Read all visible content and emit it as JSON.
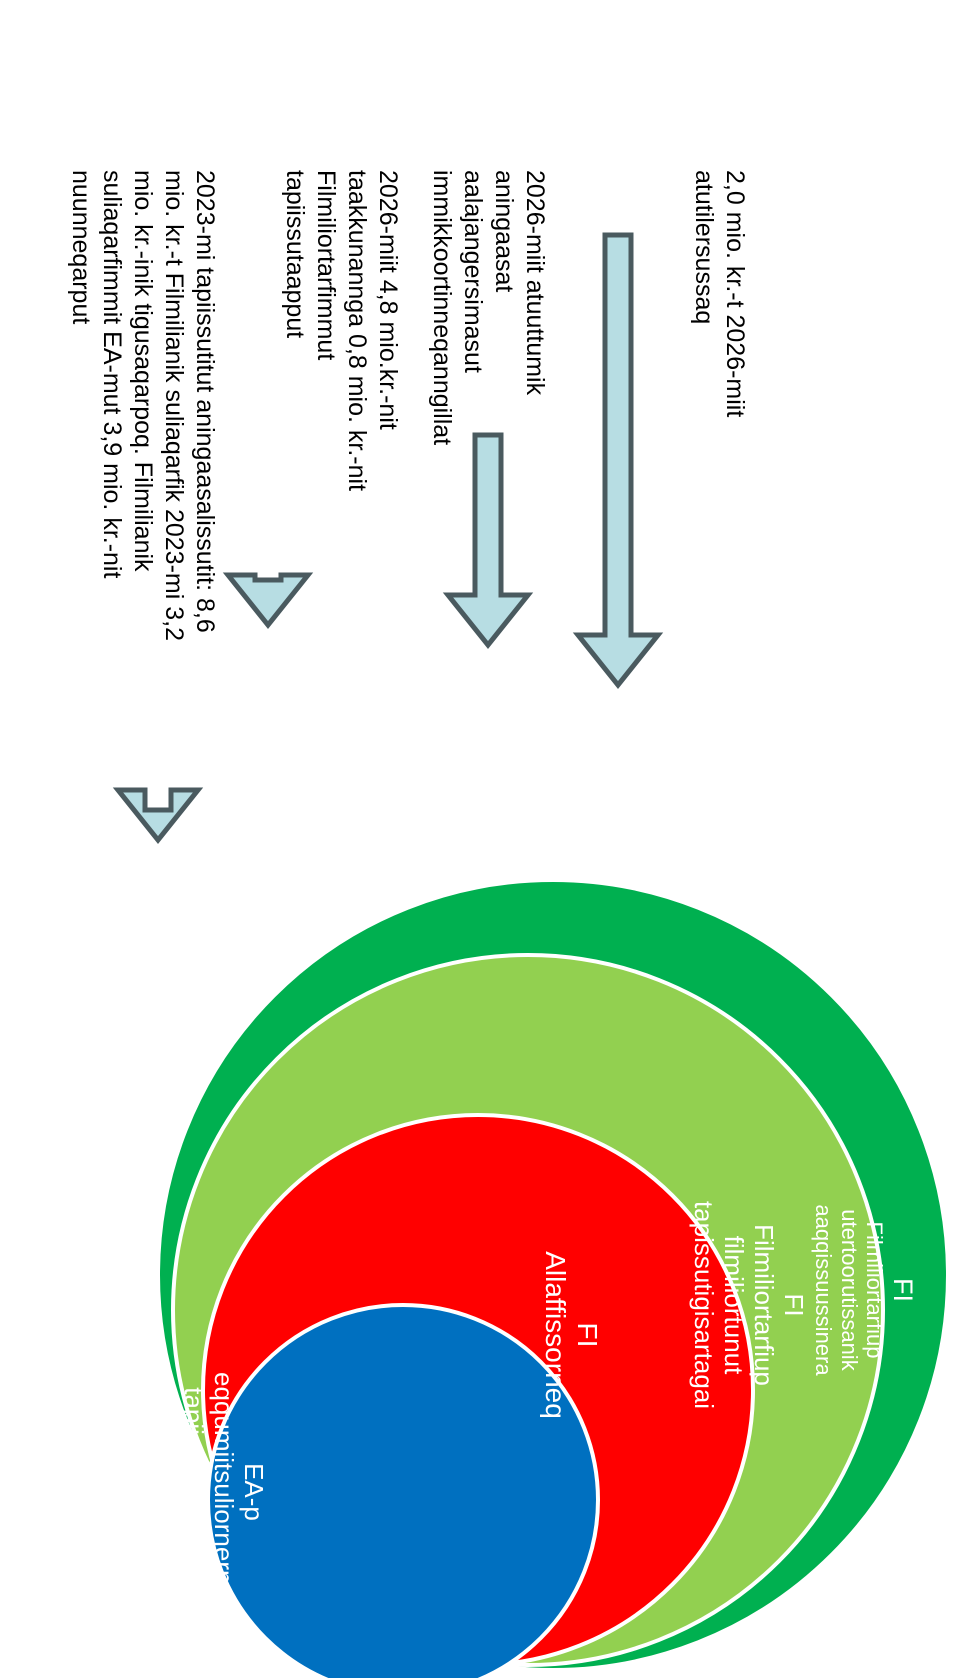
{
  "title": "",
  "colors": {
    "outer": "#00b050",
    "second": "#92d050",
    "third": "#ff0000",
    "inner": "#0070c0",
    "arrow_fill": "#b7dde3",
    "arrow_stroke": "#4a5a5f"
  },
  "circles": [
    {
      "id": "outer",
      "code": "FI",
      "text": "Filmiliortarfiup utertoorutissanik aaqqissuussinera"
    },
    {
      "id": "second",
      "code": "FI",
      "text": "Filmiliortarfiup filmiliortunut tapissutigisartagai"
    },
    {
      "id": "third",
      "code": "FI",
      "text": "Allaffissorneq"
    },
    {
      "id": "inner",
      "code": "",
      "text": "EA-p eqqumiitsuliornermut tapiissutai, filmiliat ilanngullugit"
    }
  ],
  "notes": [
    {
      "text": "2,0 mio. kr.-t 2026-miit atutilersussaq"
    },
    {
      "text": "2026-miit atuuttumik aningaasat aalajangersimasut immikkoortinneqanngillat"
    },
    {
      "text": "2026-miit 4,8 mio.kr.-nit taakkunannga 0,8 mio. kr.-nit Filmiliortarfimmut tapiissutaapput"
    },
    {
      "text": "2023-mi tapiissutitut aningaasalissutit: 8,6 mio. kr.-t Filmilianik suliaqarfik 2023-mi 3,2 mio. kr.-inik tigusaqarpoq. Filmilianik suliaqarfimmit EA-mut 3,9 mio. kr.-nit nuunneqarput"
    }
  ]
}
